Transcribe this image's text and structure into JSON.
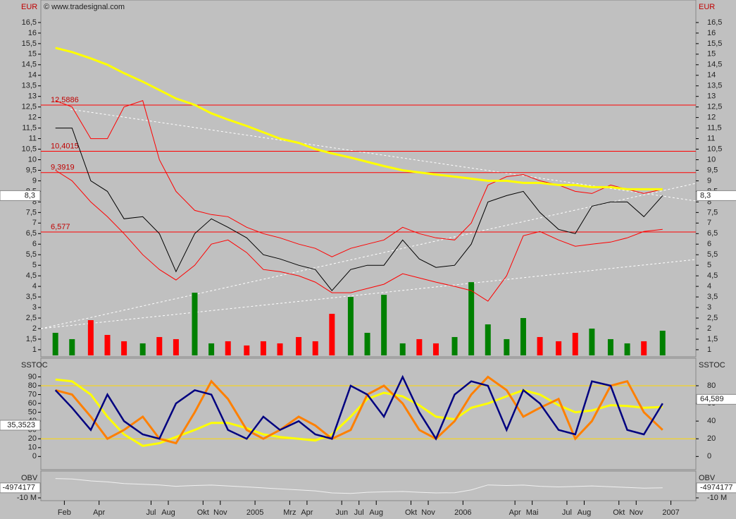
{
  "chart_data": [
    {
      "type": "price",
      "y_label": "EUR",
      "credit": "© www.tradesignal.com",
      "xlim": [
        2003.97,
        2007.12
      ],
      "ylim": [
        0.73,
        17.5
      ],
      "yticks": [
        1,
        {
          "value": 1.5,
          "label": "1,5"
        },
        2,
        {
          "value": 2.5,
          "label": "2,5"
        },
        3,
        {
          "value": 3.5,
          "label": "3,5"
        },
        4,
        {
          "value": 4.5,
          "label": "4,5"
        },
        5,
        {
          "value": 5.5,
          "label": "5,5"
        },
        6,
        {
          "value": 6.5,
          "label": "6,5"
        },
        7,
        {
          "value": 7.5,
          "label": "7,5"
        },
        8,
        {
          "value": 8.5,
          "label": "8,5"
        },
        9,
        {
          "value": 9.5,
          "label": "9,5"
        },
        10,
        {
          "value": 10.5,
          "label": "10,5"
        },
        11,
        {
          "value": 11.5,
          "label": "11,5"
        },
        12,
        {
          "value": 12.5,
          "label": "12,5"
        },
        13,
        {
          "value": 13.5,
          "label": "13,5"
        },
        14,
        {
          "value": 14.5,
          "label": "14,5"
        },
        15,
        {
          "value": 15.5,
          "label": "15,5"
        },
        16,
        {
          "value": 16.5,
          "label": "16,5"
        }
      ],
      "levels": [
        {
          "value": 12.5886,
          "label": "12,5886"
        },
        {
          "value": 10.4015,
          "label": "10,4015"
        },
        {
          "value": 9.3919,
          "label": "9,3919"
        },
        {
          "value": 6.577,
          "label": "6,577"
        }
      ],
      "last": {
        "value": 8.3,
        "label": "8,3"
      },
      "x": [
        2004.04,
        2004.12,
        2004.21,
        2004.29,
        2004.37,
        2004.46,
        2004.54,
        2004.62,
        2004.71,
        2004.79,
        2004.87,
        2004.96,
        2005.04,
        2005.12,
        2005.21,
        2005.29,
        2005.37,
        2005.46,
        2005.54,
        2005.62,
        2005.71,
        2005.79,
        2005.87,
        2005.96,
        2006.04,
        2006.12,
        2006.21,
        2006.29,
        2006.37,
        2006.46,
        2006.54,
        2006.62,
        2006.71,
        2006.79,
        2006.87,
        2006.96
      ],
      "series": [
        {
          "color": "#ff0000",
          "values": [
            12.8,
            12.5,
            11,
            11,
            12.5,
            12.8,
            10,
            8.5,
            7.6,
            7.4,
            7.3,
            6.8,
            6.5,
            6.3,
            6,
            5.8,
            5.4,
            5.8,
            6.0,
            6.2,
            6.8,
            6.5,
            6.3,
            6.2,
            7,
            8.8,
            9.2,
            9.3,
            9.0,
            8.8,
            8.5,
            8.4,
            8.8,
            8.6,
            8.4,
            8.6
          ]
        },
        {
          "color": "#ff0000",
          "values": [
            9.5,
            9.0,
            8.0,
            7.3,
            6.5,
            5.5,
            4.8,
            4.3,
            5.0,
            6.0,
            6.2,
            5.6,
            4.8,
            4.7,
            4.5,
            4.2,
            3.7,
            3.7,
            3.9,
            4.1,
            4.6,
            4.4,
            4.2,
            4.0,
            3.8,
            3.3,
            4.5,
            6.4,
            6.6,
            6.2,
            5.9,
            6.0,
            6.1,
            6.3,
            6.6,
            6.7
          ]
        },
        {
          "color": "#ffff00",
          "width": 3,
          "values": [
            15.3,
            15.1,
            14.8,
            14.5,
            14.1,
            13.7,
            13.3,
            12.9,
            12.6,
            12.2,
            11.9,
            11.6,
            11.3,
            11.0,
            10.8,
            10.5,
            10.3,
            10.1,
            9.9,
            9.7,
            9.5,
            9.4,
            9.3,
            9.2,
            9.1,
            9.0,
            9.0,
            8.9,
            8.9,
            8.8,
            8.8,
            8.7,
            8.7,
            8.6,
            8.6,
            8.6
          ]
        },
        {
          "color": "#000000",
          "values": [
            11.5,
            11.5,
            9,
            8.5,
            7.2,
            7.3,
            6.5,
            4.7,
            6.5,
            7.2,
            6.8,
            6.3,
            5.5,
            5.3,
            5.0,
            4.8,
            3.8,
            4.8,
            5.0,
            5.0,
            6.2,
            5.3,
            4.9,
            5.0,
            6.0,
            8.0,
            8.3,
            8.5,
            7.5,
            6.7,
            6.5,
            7.8,
            8.0,
            8.0,
            7.3,
            8.3
          ]
        }
      ],
      "volume": [
        1.8,
        1.5,
        2.4,
        1.7,
        1.4,
        1.3,
        1.6,
        1.5,
        3.7,
        1.3,
        1.4,
        1.2,
        1.4,
        1.3,
        1.6,
        1.4,
        2.7,
        3.5,
        1.8,
        3.6,
        1.3,
        1.5,
        1.3,
        1.6,
        4.2,
        2.2,
        1.5,
        2.5,
        1.6,
        1.4,
        1.8,
        2.0,
        1.5,
        1.3,
        1.4,
        1.9
      ],
      "up_color": "#008000",
      "down_color": "#ff0000"
    },
    {
      "type": "oscillator",
      "y_label": "SSTOC",
      "xlim": [
        2003.97,
        2007.12
      ],
      "ylim": [
        -13.3,
        109.5
      ],
      "y2lim": [
        -13.3,
        109.5
      ],
      "yticks": [
        0,
        10,
        20,
        30,
        40,
        50,
        60,
        70,
        80,
        90
      ],
      "y2ticks": [
        0,
        20,
        40,
        60,
        80
      ],
      "bands": [
        80,
        20
      ],
      "band_color": "#ffd700",
      "last_left": {
        "value": 35.3523,
        "label": "35,3523"
      },
      "last_right": {
        "value": 64.589,
        "label": "64,589"
      },
      "x": [
        2004.04,
        2004.12,
        2004.21,
        2004.29,
        2004.37,
        2004.46,
        2004.54,
        2004.62,
        2004.71,
        2004.79,
        2004.87,
        2004.96,
        2005.04,
        2005.12,
        2005.21,
        2005.29,
        2005.37,
        2005.46,
        2005.54,
        2005.62,
        2005.71,
        2005.79,
        2005.87,
        2005.96,
        2006.04,
        2006.12,
        2006.21,
        2006.29,
        2006.37,
        2006.46,
        2006.54,
        2006.62,
        2006.71,
        2006.79,
        2006.87,
        2006.96
      ],
      "series": [
        {
          "color": "#ffff00",
          "width": 3,
          "values": [
            87,
            85,
            70,
            45,
            25,
            12,
            15,
            22,
            30,
            38,
            38,
            32,
            25,
            22,
            20,
            18,
            25,
            45,
            65,
            72,
            68,
            58,
            45,
            42,
            55,
            60,
            68,
            75,
            70,
            58,
            50,
            52,
            58,
            57,
            55,
            56
          ]
        },
        {
          "color": "#ff8000",
          "width": 3,
          "values": [
            75,
            70,
            45,
            20,
            30,
            45,
            20,
            15,
            50,
            85,
            65,
            30,
            20,
            30,
            45,
            35,
            20,
            30,
            70,
            80,
            60,
            30,
            20,
            40,
            70,
            90,
            75,
            45,
            55,
            65,
            20,
            40,
            80,
            85,
            50,
            30
          ]
        },
        {
          "color": "#000080",
          "width": 2.5,
          "values": [
            75,
            55,
            30,
            70,
            40,
            25,
            20,
            60,
            75,
            70,
            30,
            20,
            45,
            30,
            40,
            25,
            20,
            80,
            70,
            45,
            90,
            50,
            20,
            70,
            85,
            80,
            30,
            75,
            60,
            30,
            25,
            85,
            80,
            30,
            25,
            60
          ]
        }
      ]
    },
    {
      "type": "obv",
      "y_label": "OBV",
      "xlim": [
        2003.97,
        2007.12
      ],
      "ylim": [
        -10700000,
        2750000
      ],
      "yticks": [
        {
          "value": -10000000,
          "label": "-10 M"
        }
      ],
      "last": {
        "value": -4974177,
        "label": "-4974177"
      },
      "x": [
        2004.04,
        2004.12,
        2004.21,
        2004.29,
        2004.37,
        2004.46,
        2004.54,
        2004.62,
        2004.71,
        2004.79,
        2004.87,
        2004.96,
        2005.04,
        2005.12,
        2005.21,
        2005.29,
        2005.37,
        2005.46,
        2005.54,
        2005.62,
        2005.71,
        2005.79,
        2005.87,
        2005.96,
        2006.04,
        2006.12,
        2006.21,
        2006.29,
        2006.37,
        2006.46,
        2006.54,
        2006.62,
        2006.71,
        2006.79,
        2006.87,
        2006.96
      ],
      "series": [
        {
          "color": "#f0f0f0",
          "values": [
            -300000,
            -500000,
            -1500000,
            -2000000,
            -2800000,
            -3200000,
            -3500000,
            -4200000,
            -3800000,
            -3600000,
            -4000000,
            -4500000,
            -5000000,
            -5500000,
            -6000000,
            -6500000,
            -7500000,
            -7800000,
            -7200000,
            -7000000,
            -6800000,
            -7200000,
            -7500000,
            -7400000,
            -6000000,
            -3500000,
            -3800000,
            -3600000,
            -4200000,
            -4500000,
            -4300000,
            -4000000,
            -4400000,
            -4800000,
            -5100000,
            -4974177
          ]
        }
      ],
      "xticks": [
        {
          "value": 2004.083,
          "label": "Feb"
        },
        {
          "value": 2004.25,
          "label": "Apr"
        },
        {
          "value": 2004.5,
          "label": "Jul"
        },
        {
          "value": 2004.583,
          "label": "Aug"
        },
        {
          "value": 2004.75,
          "label": "Okt"
        },
        {
          "value": 2004.833,
          "label": "Nov"
        },
        2005,
        {
          "value": 2005.167,
          "label": "Mrz"
        },
        {
          "value": 2005.25,
          "label": "Apr"
        },
        {
          "value": 2005.417,
          "label": "Jun"
        },
        {
          "value": 2005.5,
          "label": "Jul"
        },
        {
          "value": 2005.583,
          "label": "Aug"
        },
        {
          "value": 2005.75,
          "label": "Okt"
        },
        {
          "value": 2005.833,
          "label": "Nov"
        },
        2006,
        {
          "value": 2006.25,
          "label": "Apr"
        },
        {
          "value": 2006.333,
          "label": "Mai"
        },
        {
          "value": 2006.5,
          "label": "Jul"
        },
        {
          "value": 2006.583,
          "label": "Aug"
        },
        {
          "value": 2006.75,
          "label": "Okt"
        },
        {
          "value": 2006.833,
          "label": "Nov"
        },
        2007
      ]
    }
  ]
}
